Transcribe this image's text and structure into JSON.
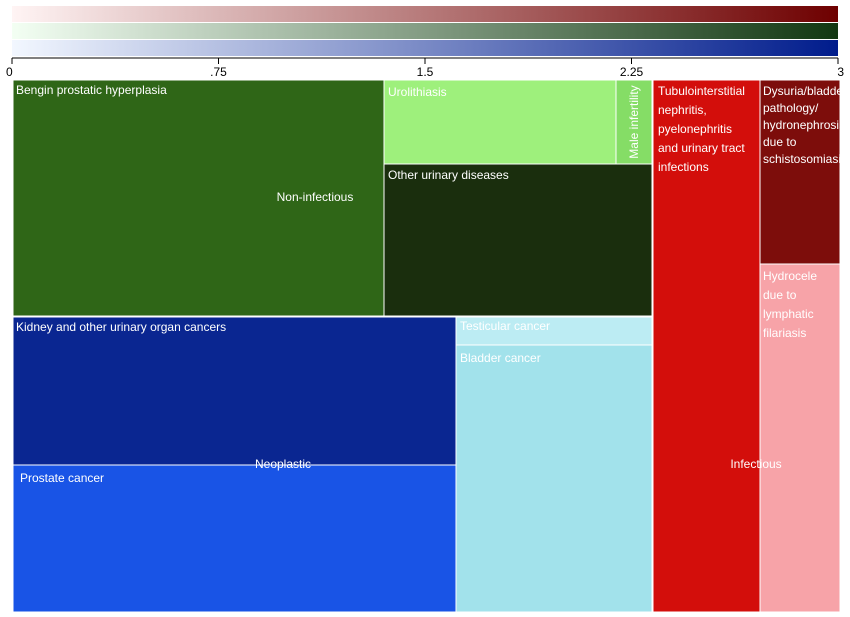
{
  "chart_data": {
    "type": "treemap",
    "color_scale": {
      "min": 0,
      "max": 3,
      "ticks": [
        "0",
        ".75",
        "1.5",
        "2.25",
        "3"
      ],
      "bands": [
        {
          "from": "#fff4f4",
          "to": "#6e0000"
        },
        {
          "from": "#f3fff3",
          "to": "#123812"
        },
        {
          "from": "#f2f7ff",
          "to": "#001c8c"
        }
      ]
    },
    "groups": [
      {
        "name": "Non-infectious",
        "cells": [
          {
            "label": "Bengin prostatic hyperplasia",
            "color": "#2f6617"
          },
          {
            "label": "Urolithiasis",
            "color": "#9ef07c"
          },
          {
            "label": "Male infertility",
            "color": "#85dd66"
          },
          {
            "label": "Other urinary diseases",
            "color": "#1a2e0d"
          }
        ]
      },
      {
        "name": "Neoplastic",
        "cells": [
          {
            "label": "Kidney and other urinary organ cancers",
            "color": "#0a2691"
          },
          {
            "label": "Prostate cancer",
            "color": "#1954e6"
          },
          {
            "label": "Testicular cancer",
            "color": "#bcecf3"
          },
          {
            "label": "Bladder cancer",
            "color": "#a2e2eb"
          }
        ]
      },
      {
        "name": "Infectious",
        "cells": [
          {
            "label": "Tubulointerstitial nephritis, pyelonephritis and urinary tract infections",
            "color": "#d30e0b"
          },
          {
            "label": "Dysuria/bladder pathology/ hydronephrosis due to schistosomiasis",
            "color": "#7d0d0b"
          },
          {
            "label": "Hydrocele due to lymphatic filariasis",
            "color": "#f7a3a8"
          }
        ]
      }
    ]
  }
}
